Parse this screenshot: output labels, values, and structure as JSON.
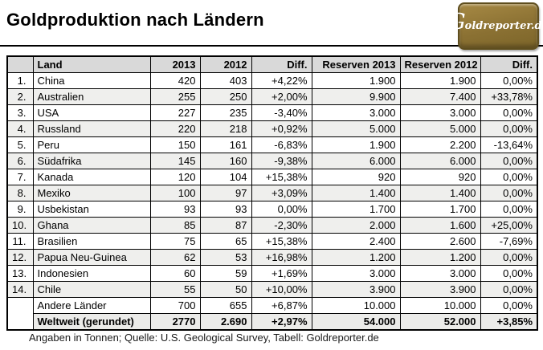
{
  "page": {
    "title": "Goldproduktion nach Ländern",
    "footer": "Angaben in Tonnen; Quelle: U.S. Geological Survey, Tabell: Goldreporter.de"
  },
  "logo": {
    "initial": "G",
    "rest": "oldreporter.de"
  },
  "chart_data": {
    "type": "table",
    "title": "Goldproduktion nach Ländern",
    "unit": "Tonnen",
    "headers": [
      "",
      "Land",
      "2013",
      "2012",
      "Diff.",
      "Reserven 2013",
      "Reserven 2012",
      "Diff."
    ],
    "rows": [
      [
        "1.",
        "China",
        "420",
        "403",
        "+4,22%",
        "1.900",
        "1.900",
        "0,00%"
      ],
      [
        "2.",
        "Australien",
        "255",
        "250",
        "+2,00%",
        "9.900",
        "7.400",
        "+33,78%"
      ],
      [
        "3.",
        "USA",
        "227",
        "235",
        "-3,40%",
        "3.000",
        "3.000",
        "0,00%"
      ],
      [
        "4.",
        "Russland",
        "220",
        "218",
        "+0,92%",
        "5.000",
        "5.000",
        "0,00%"
      ],
      [
        "5.",
        "Peru",
        "150",
        "161",
        "-6,83%",
        "1.900",
        "2.200",
        "-13,64%"
      ],
      [
        "6.",
        "Südafrika",
        "145",
        "160",
        "-9,38%",
        "6.000",
        "6.000",
        "0,00%"
      ],
      [
        "7.",
        "Kanada",
        "120",
        "104",
        "+15,38%",
        "920",
        "920",
        "0,00%"
      ],
      [
        "8.",
        "Mexiko",
        "100",
        "97",
        "+3,09%",
        "1.400",
        "1.400",
        "0,00%"
      ],
      [
        "9.",
        "Usbekistan",
        "93",
        "93",
        "0,00%",
        "1.700",
        "1.700",
        "0,00%"
      ],
      [
        "10.",
        "Ghana",
        "85",
        "87",
        "-2,30%",
        "2.000",
        "1.600",
        "+25,00%"
      ],
      [
        "11.",
        "Brasilien",
        "75",
        "65",
        "+15,38%",
        "2.400",
        "2.600",
        "-7,69%"
      ],
      [
        "12.",
        "Papua Neu-Guinea",
        "62",
        "53",
        "+16,98%",
        "1.200",
        "1.200",
        "0,00%"
      ],
      [
        "13.",
        "Indonesien",
        "60",
        "59",
        "+1,69%",
        "3.000",
        "3.000",
        "0,00%"
      ],
      [
        "14.",
        "Chile",
        "55",
        "50",
        "+10,00%",
        "3.900",
        "3.900",
        "0,00%"
      ],
      [
        "",
        "Andere Länder",
        "700",
        "655",
        "+6,87%",
        "10.000",
        "10.000",
        "0,00%"
      ],
      [
        "",
        "Weltweit (gerundet)",
        "2770",
        "2.690",
        "+2,97%",
        "54.000",
        "52.000",
        "+3,85%"
      ]
    ]
  },
  "colors": {
    "header_bg": "#d9d9d9",
    "row_alt_bg": "#efefed",
    "total_row_bg": "#ebebe9",
    "table_border": "#000000",
    "logo_gold": "#8b7133",
    "logo_border": "#5f4e1e",
    "logo_text": "#ffffff"
  }
}
